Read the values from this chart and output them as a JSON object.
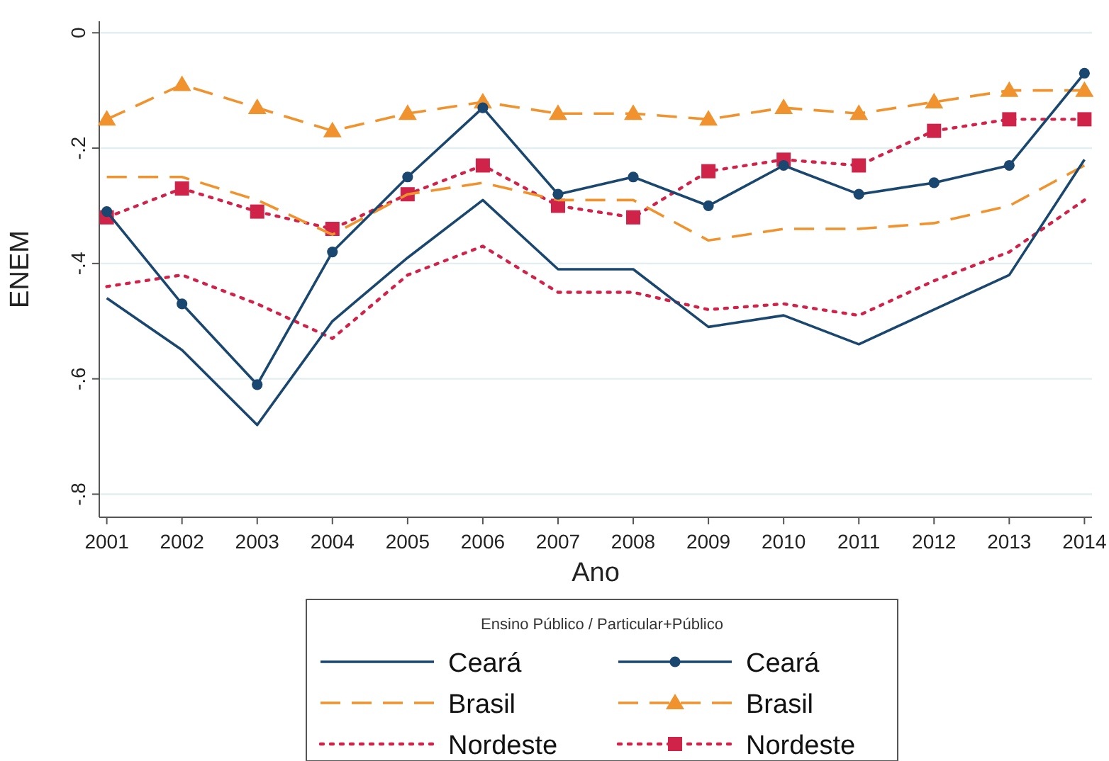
{
  "chart_data": {
    "type": "line",
    "xlabel": "Ano",
    "ylabel": "ENEM",
    "legend_title": "Ensino Público / Particular+Público",
    "legend": "bottom",
    "grid": "y",
    "categories": [
      "2001",
      "2002",
      "2003",
      "2004",
      "2005",
      "2006",
      "2007",
      "2008",
      "2009",
      "2010",
      "2011",
      "2012",
      "2013",
      "2014"
    ],
    "ylim": [
      -0.84,
      0.02
    ],
    "yticks": [
      {
        "value": 0,
        "label": "0"
      },
      {
        "value": -0.2,
        "label": "-.2"
      },
      {
        "value": -0.4,
        "label": "-.4"
      },
      {
        "value": -0.6,
        "label": "-.6"
      },
      {
        "value": -0.8,
        "label": "-.8"
      }
    ],
    "series": [
      {
        "name": "Ceará",
        "color": "#1a476f",
        "line_style": "solid",
        "marker": "none",
        "values": [
          -0.46,
          -0.55,
          -0.68,
          -0.5,
          -0.39,
          -0.29,
          -0.41,
          -0.41,
          -0.51,
          -0.49,
          -0.54,
          -0.48,
          -0.42,
          -0.22
        ]
      },
      {
        "name": "Ceará",
        "color": "#1a476f",
        "line_style": "solid",
        "marker": "circle",
        "values": [
          -0.31,
          -0.47,
          -0.61,
          -0.38,
          -0.25,
          -0.13,
          -0.28,
          -0.25,
          -0.3,
          -0.23,
          -0.28,
          -0.26,
          -0.23,
          -0.07
        ]
      },
      {
        "name": "Brasil",
        "color": "#f0932f",
        "line_style": "dashed",
        "marker": "none",
        "values": [
          -0.25,
          -0.25,
          -0.29,
          -0.35,
          -0.28,
          -0.26,
          -0.29,
          -0.29,
          -0.36,
          -0.34,
          -0.34,
          -0.33,
          -0.3,
          -0.23
        ]
      },
      {
        "name": "Brasil",
        "color": "#f0932f",
        "line_style": "dashed",
        "marker": "triangle",
        "values": [
          -0.15,
          -0.09,
          -0.13,
          -0.17,
          -0.14,
          -0.12,
          -0.14,
          -0.14,
          -0.15,
          -0.13,
          -0.14,
          -0.12,
          -0.1,
          -0.1
        ]
      },
      {
        "name": "Nordeste",
        "color": "#d0234a",
        "line_style": "dotted",
        "marker": "none",
        "values": [
          -0.44,
          -0.42,
          -0.47,
          -0.53,
          -0.42,
          -0.37,
          -0.45,
          -0.45,
          -0.48,
          -0.47,
          -0.49,
          -0.43,
          -0.38,
          -0.29
        ]
      },
      {
        "name": "Nordeste",
        "color": "#d0234a",
        "line_style": "dotted",
        "marker": "square",
        "values": [
          -0.32,
          -0.27,
          -0.31,
          -0.34,
          -0.28,
          -0.23,
          -0.3,
          -0.32,
          -0.24,
          -0.22,
          -0.23,
          -0.17,
          -0.15,
          -0.15
        ]
      }
    ]
  }
}
